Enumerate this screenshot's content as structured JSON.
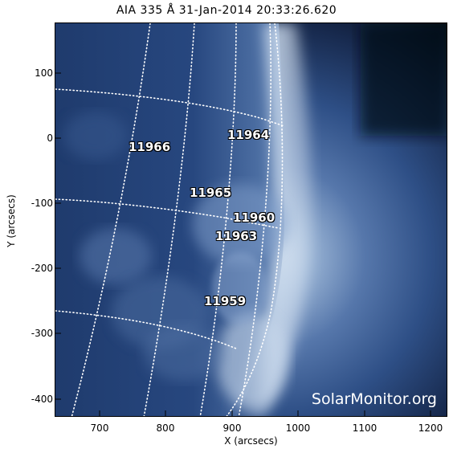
{
  "title": "AIA 335 Å 31-Jan-2014 20:33:26.620",
  "axes": {
    "xlabel": "X (arcsecs)",
    "ylabel": "Y (arcsecs)",
    "xticks": [
      "700",
      "800",
      "900",
      "1000",
      "1100",
      "1200"
    ],
    "yticks": [
      "100",
      "0",
      "-100",
      "-200",
      "-300",
      "-400"
    ]
  },
  "regions": [
    {
      "label": "11966"
    },
    {
      "label": "11964"
    },
    {
      "label": "11965"
    },
    {
      "label": "11960"
    },
    {
      "label": "11963"
    },
    {
      "label": "11959"
    }
  ],
  "watermark": "SolarMonitor.org",
  "colors": {
    "disk_dark": "#1d3a6e",
    "limb_bright": "#dfe9f5",
    "corona": "#2b4f88",
    "space": "#0a1426",
    "grid": "#ffffff"
  }
}
